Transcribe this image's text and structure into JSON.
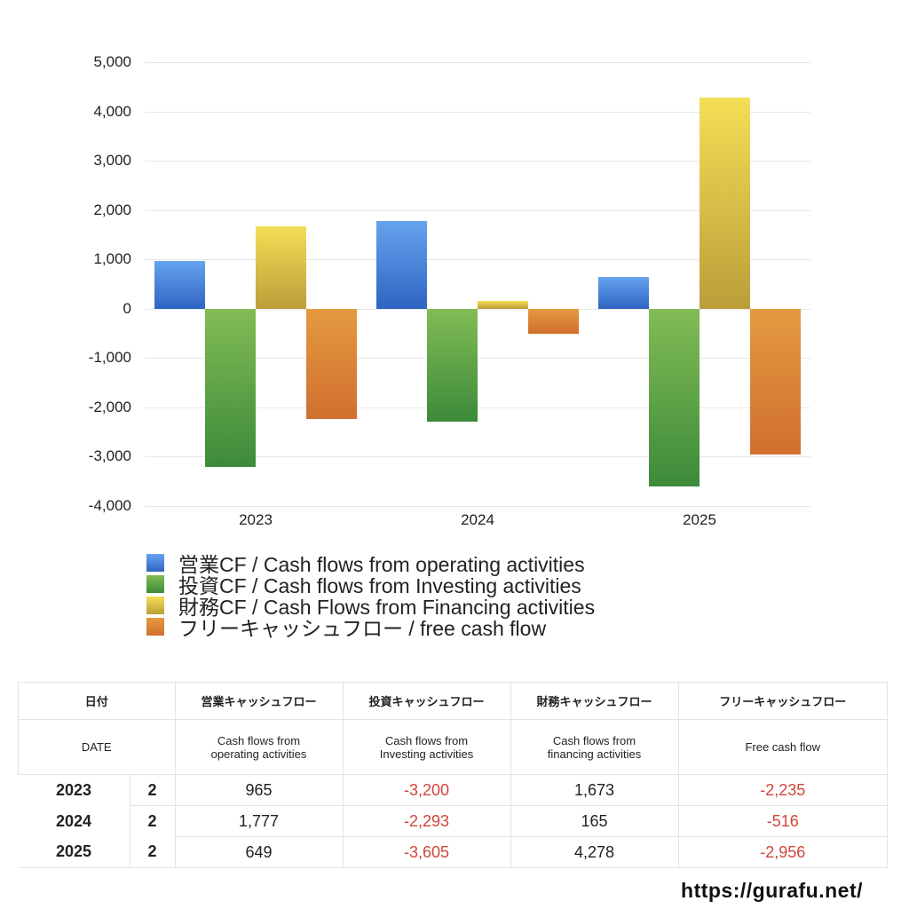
{
  "chart_data": {
    "type": "bar",
    "title": "",
    "xlabel": "",
    "ylabel": "",
    "categories": [
      "2023",
      "2024",
      "2025"
    ],
    "series": [
      {
        "name": "営業CF / Cash flows from operating activities",
        "values": [
          965,
          1777,
          649
        ],
        "color_top": "#66a3ee",
        "color_bottom": "#2f64c2"
      },
      {
        "name": "投資CF / Cash flows from Investing activities",
        "values": [
          -3200,
          -2293,
          -3605
        ],
        "color_top": "#82bc55",
        "color_bottom": "#3c8a3a"
      },
      {
        "name": "財務CF / Cash Flows from Financing activities",
        "values": [
          1673,
          165,
          4278
        ],
        "color_top": "#f4de55",
        "color_bottom": "#bb9e3a"
      },
      {
        "name": "フリーキャッシュフロー / free cash flow",
        "values": [
          -2235,
          -516,
          -2956
        ],
        "color_top": "#e49a40",
        "color_bottom": "#d16f2f"
      }
    ],
    "ylim": [
      -4000,
      5000
    ],
    "yticks": [
      "5,000",
      "4,000",
      "3,000",
      "2,000",
      "1,000",
      "0",
      "-1,000",
      "-2,000",
      "-3,000",
      "-4,000"
    ],
    "grid": true,
    "legend_position": "bottom"
  },
  "legend": [
    {
      "label": "営業CF / Cash flows from operating activities",
      "color": "#3f7fd8"
    },
    {
      "label": "投資CF / Cash flows from Investing activities",
      "color": "#4e9a43"
    },
    {
      "label": "財務CF / Cash Flows from Financing activities",
      "color": "#dcc445"
    },
    {
      "label": "フリーキャッシュフロー / free cash flow",
      "color": "#dc8036"
    }
  ],
  "table": {
    "header_jp": [
      "日付",
      "営業キャッシュフロー",
      "投資キャッシュフロー",
      "財務キャッシュフロー",
      "フリーキャッシュフロー"
    ],
    "header_en": [
      "DATE",
      "Cash flows from operating activities",
      "Cash flows from Investing activities",
      "Cash flows from financing activities",
      "Free cash flow"
    ],
    "header_en_lines": [
      [
        "DATE"
      ],
      [
        "Cash flows from",
        "operating activities"
      ],
      [
        "Cash flows from",
        "Investing activities"
      ],
      [
        "Cash flows from",
        "financing activities"
      ],
      [
        "Free cash flow"
      ]
    ],
    "rows": [
      {
        "year": "2023",
        "q": "2",
        "operating": "965",
        "investing": "-3,200",
        "financing": "1,673",
        "free": "-2,235"
      },
      {
        "year": "2024",
        "q": "2",
        "operating": "1,777",
        "investing": "-2,293",
        "financing": "165",
        "free": "-516"
      },
      {
        "year": "2025",
        "q": "2",
        "operating": "649",
        "investing": "-3,605",
        "financing": "4,278",
        "free": "-2,956"
      }
    ]
  },
  "footer": {
    "url": "https://gurafu.net/"
  }
}
